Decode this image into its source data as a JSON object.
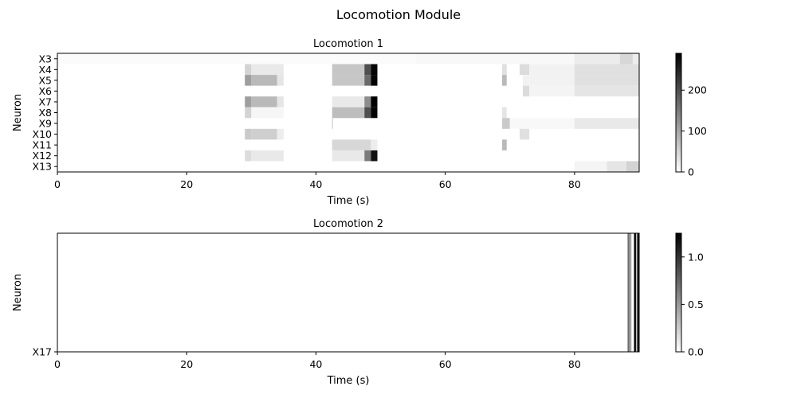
{
  "figure": {
    "title": "Locomotion Module"
  },
  "chart_data": [
    {
      "type": "heatmap",
      "title": "Locomotion 1",
      "xlabel": "Time (s)",
      "ylabel": "Neuron",
      "xlim": [
        0,
        90
      ],
      "x_ticks": [
        0,
        20,
        40,
        60,
        80
      ],
      "neurons": [
        "X3",
        "X4",
        "X5",
        "X6",
        "X7",
        "X8",
        "X9",
        "X10",
        "X11",
        "X12",
        "X13"
      ],
      "colormap": "gray_r",
      "colorbar": {
        "range": [
          0,
          290
        ],
        "ticks": [
          0,
          100,
          200
        ]
      },
      "rows": [
        {
          "neuron": "X3",
          "segments": [
            {
              "start": 0,
              "end": 55.5,
              "value": 4
            },
            {
              "start": 55.5,
              "end": 80,
              "value": 8
            },
            {
              "start": 80,
              "end": 87,
              "value": 22
            },
            {
              "start": 87,
              "end": 89,
              "value": 45
            },
            {
              "start": 89,
              "end": 90,
              "value": 20
            }
          ]
        },
        {
          "neuron": "X4",
          "segments": [
            {
              "start": 29,
              "end": 30,
              "value": 50
            },
            {
              "start": 30,
              "end": 35,
              "value": 25
            },
            {
              "start": 42.5,
              "end": 47.5,
              "value": 65
            },
            {
              "start": 47.5,
              "end": 48.5,
              "value": 200
            },
            {
              "start": 48.5,
              "end": 49.5,
              "value": 285
            },
            {
              "start": 68.8,
              "end": 69.5,
              "value": 35
            },
            {
              "start": 71.5,
              "end": 73,
              "value": 40
            },
            {
              "start": 73,
              "end": 80,
              "value": 15
            },
            {
              "start": 80,
              "end": 90,
              "value": 35
            }
          ]
        },
        {
          "neuron": "X5",
          "segments": [
            {
              "start": 29,
              "end": 30,
              "value": 110
            },
            {
              "start": 30,
              "end": 34,
              "value": 80
            },
            {
              "start": 34,
              "end": 35,
              "value": 30
            },
            {
              "start": 42.5,
              "end": 47.5,
              "value": 65
            },
            {
              "start": 47.5,
              "end": 48.5,
              "value": 170
            },
            {
              "start": 48.5,
              "end": 49.5,
              "value": 285
            },
            {
              "start": 68.8,
              "end": 69.5,
              "value": 80
            },
            {
              "start": 72,
              "end": 73,
              "value": 15
            },
            {
              "start": 73,
              "end": 80,
              "value": 15
            },
            {
              "start": 80,
              "end": 90,
              "value": 35
            }
          ]
        },
        {
          "neuron": "X6",
          "segments": [
            {
              "start": 72,
              "end": 73,
              "value": 40
            },
            {
              "start": 73,
              "end": 80,
              "value": 12
            },
            {
              "start": 80,
              "end": 90,
              "value": 30
            }
          ]
        },
        {
          "neuron": "X7",
          "segments": [
            {
              "start": 29,
              "end": 30,
              "value": 110
            },
            {
              "start": 30,
              "end": 34,
              "value": 80
            },
            {
              "start": 34,
              "end": 35,
              "value": 30
            },
            {
              "start": 42.5,
              "end": 47.5,
              "value": 25
            },
            {
              "start": 47.5,
              "end": 48.5,
              "value": 130
            },
            {
              "start": 48.5,
              "end": 49.5,
              "value": 290
            }
          ]
        },
        {
          "neuron": "X8",
          "segments": [
            {
              "start": 29,
              "end": 30,
              "value": 50
            },
            {
              "start": 30,
              "end": 35,
              "value": 10
            },
            {
              "start": 42.5,
              "end": 47.5,
              "value": 75
            },
            {
              "start": 47.5,
              "end": 48.5,
              "value": 200
            },
            {
              "start": 48.5,
              "end": 49.5,
              "value": 285
            },
            {
              "start": 68.8,
              "end": 69.5,
              "value": 30
            }
          ]
        },
        {
          "neuron": "X9",
          "segments": [
            {
              "start": 42.5,
              "end": 42.6,
              "value": 80
            },
            {
              "start": 68.8,
              "end": 70,
              "value": 60
            },
            {
              "start": 70,
              "end": 80,
              "value": 8
            },
            {
              "start": 80,
              "end": 90,
              "value": 25
            }
          ]
        },
        {
          "neuron": "X10",
          "segments": [
            {
              "start": 29,
              "end": 30,
              "value": 60
            },
            {
              "start": 30,
              "end": 34,
              "value": 55
            },
            {
              "start": 34,
              "end": 35,
              "value": 20
            },
            {
              "start": 71.5,
              "end": 73,
              "value": 35
            }
          ]
        },
        {
          "neuron": "X11",
          "segments": [
            {
              "start": 42.5,
              "end": 48.5,
              "value": 45
            },
            {
              "start": 48.5,
              "end": 49.5,
              "value": 20
            },
            {
              "start": 68.8,
              "end": 69.5,
              "value": 80
            }
          ]
        },
        {
          "neuron": "X12",
          "segments": [
            {
              "start": 29,
              "end": 30,
              "value": 40
            },
            {
              "start": 30,
              "end": 35,
              "value": 25
            },
            {
              "start": 42.5,
              "end": 47.5,
              "value": 25
            },
            {
              "start": 47.5,
              "end": 48.5,
              "value": 150
            },
            {
              "start": 48.5,
              "end": 49.5,
              "value": 270
            }
          ]
        },
        {
          "neuron": "X13",
          "segments": [
            {
              "start": 80,
              "end": 85,
              "value": 12
            },
            {
              "start": 85,
              "end": 88,
              "value": 30
            },
            {
              "start": 88,
              "end": 90,
              "value": 50
            }
          ]
        }
      ]
    },
    {
      "type": "heatmap",
      "title": "Locomotion 2",
      "xlabel": "Time (s)",
      "ylabel": "Neuron",
      "xlim": [
        0,
        90
      ],
      "x_ticks": [
        0,
        20,
        40,
        60,
        80
      ],
      "neurons": [
        "X17"
      ],
      "colormap": "gray_r",
      "colorbar": {
        "range": [
          0,
          1.25
        ],
        "ticks": [
          0.0,
          0.5,
          1.0
        ],
        "tick_labels": [
          "0.0",
          "0.5",
          "1.0"
        ]
      },
      "rows": [
        {
          "neuron": "X17",
          "segments": [
            {
              "start": 88.2,
              "end": 88.5,
              "value": 0.7
            },
            {
              "start": 88.5,
              "end": 88.8,
              "value": 0.45
            },
            {
              "start": 89.2,
              "end": 89.5,
              "value": 1.25
            },
            {
              "start": 89.5,
              "end": 89.7,
              "value": 0.3
            },
            {
              "start": 89.7,
              "end": 90,
              "value": 1.25
            }
          ]
        }
      ]
    }
  ]
}
